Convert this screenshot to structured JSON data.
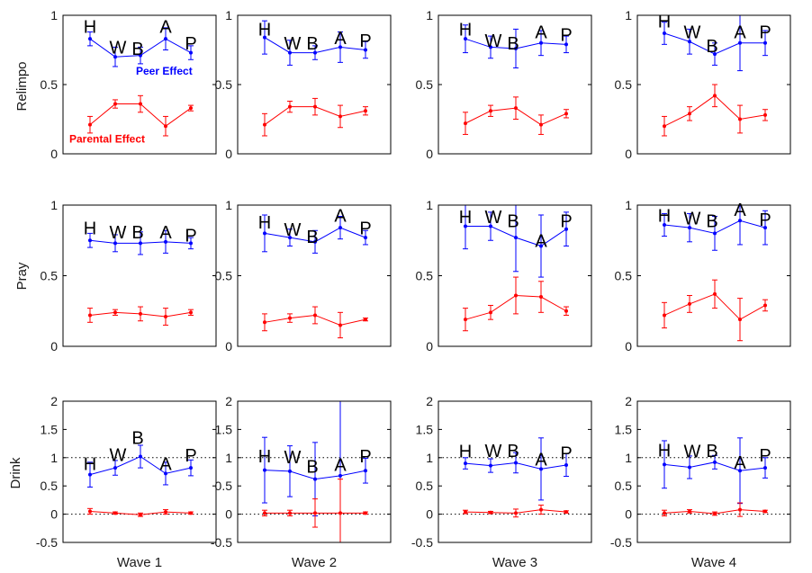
{
  "colors": {
    "peer": "#0000ff",
    "parental": "#ff0000",
    "axis": "#000000",
    "text": "#1a1a1a"
  },
  "labels": {
    "row_titles": [
      "Relimpo",
      "Pray",
      "Drink"
    ],
    "col_titles": [
      "Wave 1",
      "Wave 2",
      "Wave 3",
      "Wave 4"
    ]
  },
  "chart_data": {
    "type": "line",
    "categories": [
      "H",
      "W",
      "B",
      "A",
      "P"
    ],
    "rows": [
      {
        "ylabel": "Relimpo",
        "ylim": [
          0,
          1
        ],
        "yticks": [
          "0",
          "0.5",
          "1"
        ],
        "ref_lines": [],
        "legend": {
          "peer": "Peer Effect",
          "parental": "Parental Effect"
        },
        "panels": [
          {
            "xlabel": "",
            "peer": {
              "values": [
                0.83,
                0.7,
                0.71,
                0.83,
                0.73
              ],
              "err": [
                0.05,
                0.07,
                0.06,
                0.08,
                0.05
              ]
            },
            "parental": {
              "values": [
                0.21,
                0.36,
                0.36,
                0.2,
                0.33
              ],
              "err": [
                0.06,
                0.03,
                0.06,
                0.07,
                0.02
              ]
            }
          },
          {
            "xlabel": "",
            "peer": {
              "values": [
                0.84,
                0.73,
                0.73,
                0.77,
                0.75
              ],
              "err": [
                0.12,
                0.09,
                0.05,
                0.11,
                0.06
              ]
            },
            "parental": {
              "values": [
                0.21,
                0.34,
                0.34,
                0.27,
                0.31
              ],
              "err": [
                0.08,
                0.04,
                0.06,
                0.08,
                0.03
              ]
            }
          },
          {
            "xlabel": "",
            "peer": {
              "values": [
                0.83,
                0.77,
                0.76,
                0.8,
                0.79
              ],
              "err": [
                0.1,
                0.08,
                0.14,
                0.09,
                0.06
              ]
            },
            "parental": {
              "values": [
                0.22,
                0.31,
                0.33,
                0.21,
                0.29
              ],
              "err": [
                0.08,
                0.04,
                0.08,
                0.07,
                0.03
              ]
            }
          },
          {
            "xlabel": "",
            "peer": {
              "values": [
                0.87,
                0.81,
                0.72,
                0.8,
                0.8
              ],
              "err": [
                0.08,
                0.09,
                0.08,
                0.2,
                0.09
              ]
            },
            "parental": {
              "values": [
                0.2,
                0.29,
                0.42,
                0.25,
                0.28
              ],
              "err": [
                0.07,
                0.05,
                0.08,
                0.1,
                0.04
              ]
            }
          }
        ]
      },
      {
        "ylabel": "Pray",
        "ylim": [
          0,
          1
        ],
        "yticks": [
          "0",
          "0.5",
          "1"
        ],
        "ref_lines": [],
        "panels": [
          {
            "xlabel": "",
            "peer": {
              "values": [
                0.75,
                0.73,
                0.73,
                0.74,
                0.73
              ],
              "err": [
                0.05,
                0.06,
                0.08,
                0.08,
                0.04
              ]
            },
            "parental": {
              "values": [
                0.22,
                0.24,
                0.23,
                0.21,
                0.24
              ],
              "err": [
                0.05,
                0.02,
                0.05,
                0.06,
                0.02
              ]
            }
          },
          {
            "xlabel": "",
            "peer": {
              "values": [
                0.8,
                0.77,
                0.74,
                0.84,
                0.77
              ],
              "err": [
                0.13,
                0.06,
                0.08,
                0.08,
                0.05
              ]
            },
            "parental": {
              "values": [
                0.17,
                0.2,
                0.22,
                0.15,
                0.19
              ],
              "err": [
                0.06,
                0.03,
                0.06,
                0.09,
                0.01
              ]
            }
          },
          {
            "xlabel": "",
            "peer": {
              "values": [
                0.85,
                0.85,
                0.77,
                0.71,
                0.83
              ],
              "err": [
                0.16,
                0.1,
                0.24,
                0.22,
                0.12
              ]
            },
            "parental": {
              "values": [
                0.19,
                0.24,
                0.36,
                0.35,
                0.25
              ],
              "err": [
                0.08,
                0.05,
                0.13,
                0.11,
                0.03
              ]
            }
          },
          {
            "xlabel": "",
            "peer": {
              "values": [
                0.86,
                0.84,
                0.8,
                0.89,
                0.84
              ],
              "err": [
                0.08,
                0.1,
                0.12,
                0.17,
                0.12
              ]
            },
            "parental": {
              "values": [
                0.22,
                0.3,
                0.37,
                0.19,
                0.29
              ],
              "err": [
                0.09,
                0.06,
                0.1,
                0.15,
                0.04
              ]
            }
          }
        ]
      },
      {
        "ylabel": "Drink",
        "ylim": [
          -0.5,
          2
        ],
        "yticks": [
          "-0.5",
          "0",
          "0.5",
          "1",
          "1.5",
          "2"
        ],
        "ref_lines": [
          0,
          1
        ],
        "panels": [
          {
            "xlabel": "Wave 1",
            "peer": {
              "values": [
                0.7,
                0.82,
                1.02,
                0.72,
                0.82
              ],
              "err": [
                0.22,
                0.13,
                0.2,
                0.2,
                0.14
              ]
            },
            "parental": {
              "values": [
                0.05,
                0.02,
                -0.01,
                0.04,
                0.02
              ],
              "err": [
                0.05,
                0.02,
                0.03,
                0.04,
                0.02
              ]
            }
          },
          {
            "xlabel": "Wave 2",
            "peer": {
              "values": [
                0.78,
                0.76,
                0.62,
                0.68,
                0.77
              ],
              "err": [
                0.58,
                0.45,
                0.65,
                1.8,
                0.22
              ]
            },
            "parental": {
              "values": [
                0.02,
                0.02,
                0.02,
                0.02,
                0.02
              ],
              "err": [
                0.05,
                0.05,
                0.25,
                0.6,
                0.02
              ]
            }
          },
          {
            "xlabel": "Wave 3",
            "peer": {
              "values": [
                0.9,
                0.86,
                0.91,
                0.8,
                0.87
              ],
              "err": [
                0.1,
                0.12,
                0.18,
                0.55,
                0.2
              ]
            },
            "parental": {
              "values": [
                0.04,
                0.03,
                0.02,
                0.08,
                0.04
              ],
              "err": [
                0.03,
                0.02,
                0.07,
                0.08,
                0.02
              ]
            }
          },
          {
            "xlabel": "Wave 4",
            "peer": {
              "values": [
                0.88,
                0.83,
                0.92,
                0.77,
                0.82
              ],
              "err": [
                0.42,
                0.2,
                0.12,
                0.58,
                0.18
              ]
            },
            "parental": {
              "values": [
                0.02,
                0.05,
                0.01,
                0.08,
                0.05
              ],
              "err": [
                0.05,
                0.03,
                0.03,
                0.12,
                0.02
              ]
            }
          }
        ]
      }
    ],
    "letter_labels": [
      [
        [
          [
            0.88,
            0.88
          ],
          [
            0.73,
            0.73
          ],
          [
            0.72,
            0.72
          ],
          [
            0.88,
            0.88
          ],
          [
            0.76,
            0.76
          ]
        ],
        [
          [
            0.86,
            0.86
          ],
          [
            0.76,
            0.76
          ],
          [
            0.76,
            0.76
          ],
          [
            0.8,
            0.8
          ],
          [
            0.78,
            0.78
          ]
        ],
        [
          [
            0.86,
            0.86
          ],
          [
            0.78,
            0.78
          ],
          [
            0.76,
            0.76
          ],
          [
            0.84,
            0.84
          ],
          [
            0.82,
            0.82
          ]
        ],
        [
          [
            0.92,
            0.92
          ],
          [
            0.84,
            0.84
          ],
          [
            0.74,
            0.74
          ],
          [
            0.84,
            0.84
          ],
          [
            0.84,
            0.84
          ]
        ]
      ],
      [
        [
          [
            0.8,
            0.8
          ],
          [
            0.77,
            0.77
          ],
          [
            0.77,
            0.77
          ],
          [
            0.77,
            0.77
          ],
          [
            0.75,
            0.75
          ]
        ],
        [
          [
            0.84,
            0.84
          ],
          [
            0.79,
            0.79
          ],
          [
            0.74,
            0.74
          ],
          [
            0.89,
            0.89
          ],
          [
            0.8,
            0.8
          ]
        ],
        [
          [
            0.88,
            0.88
          ],
          [
            0.88,
            0.88
          ],
          [
            0.85,
            0.85
          ],
          [
            0.71,
            0.71
          ],
          [
            0.85,
            0.85
          ]
        ],
        [
          [
            0.89,
            0.89
          ],
          [
            0.87,
            0.87
          ],
          [
            0.85,
            0.85
          ],
          [
            0.93,
            0.93
          ],
          [
            0.86,
            0.86
          ]
        ]
      ],
      [
        [
          [
            0.8,
            0.8
          ],
          [
            0.96,
            0.96
          ],
          [
            1.26,
            1.26
          ],
          [
            0.8,
            0.8
          ],
          [
            0.95,
            0.95
          ]
        ],
        [
          [
            0.93,
            0.93
          ],
          [
            0.92,
            0.92
          ],
          [
            0.75,
            0.75
          ],
          [
            0.78,
            0.78
          ],
          [
            0.93,
            0.93
          ]
        ],
        [
          [
            1.02,
            1.02
          ],
          [
            1.03,
            1.03
          ],
          [
            1.03,
            1.03
          ],
          [
            0.88,
            0.88
          ],
          [
            0.99,
            0.99
          ]
        ],
        [
          [
            1.04,
            1.04
          ],
          [
            1.02,
            1.02
          ],
          [
            1.03,
            1.03
          ],
          [
            0.82,
            0.82
          ],
          [
            0.95,
            0.95
          ]
        ]
      ]
    ]
  }
}
